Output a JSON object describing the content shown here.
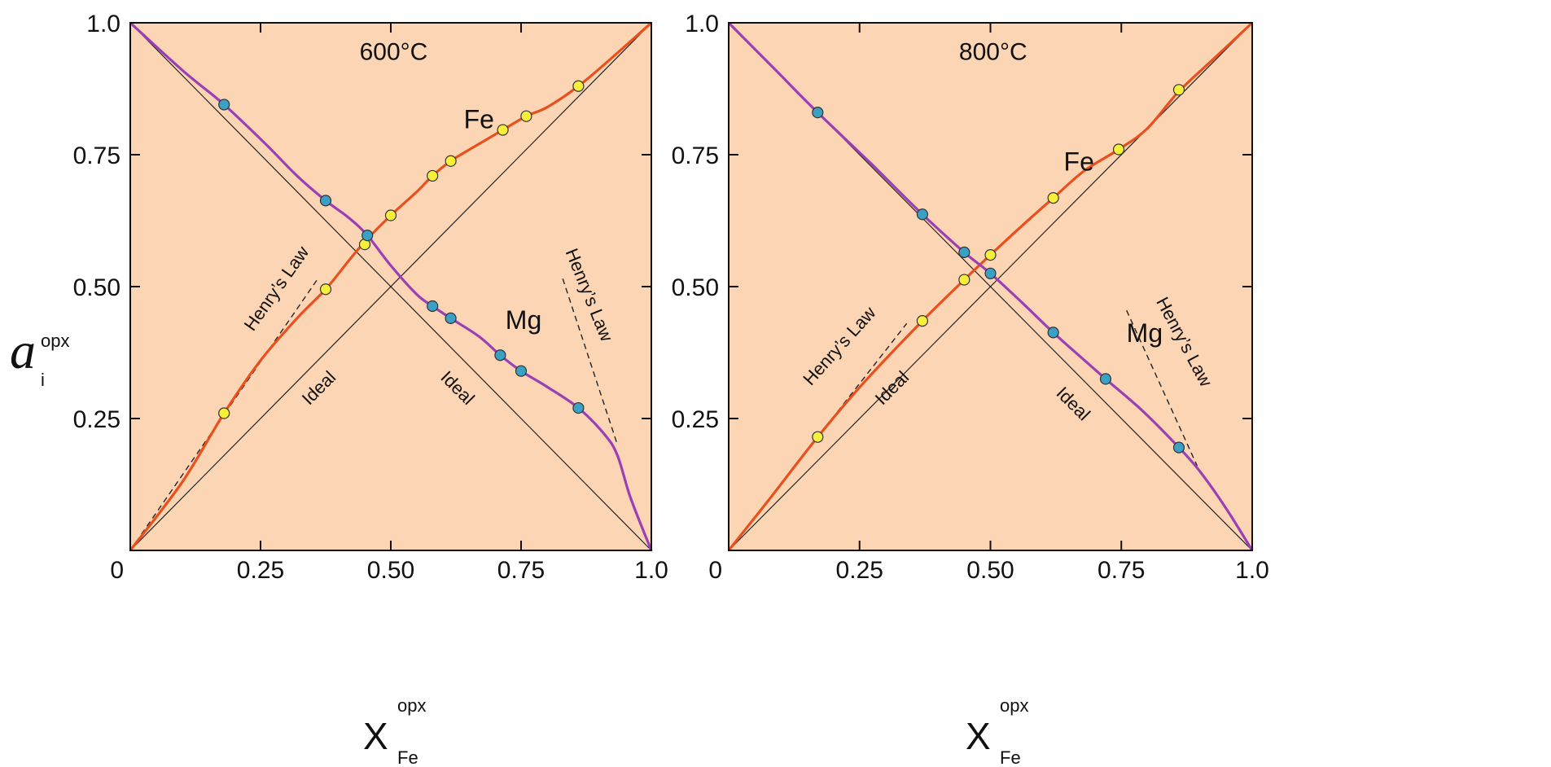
{
  "figure": {
    "y_axis_label": {
      "symbol": "a",
      "subscript": "i",
      "superscript": "opx"
    },
    "x_axis_label": {
      "symbol": "X",
      "subscript": "Fe",
      "superscript": "opx"
    }
  },
  "chart_data": [
    {
      "type": "line",
      "temperature_label": "600°C",
      "background": "#fcd5b4",
      "xlim": [
        0,
        1
      ],
      "ylim": [
        0,
        1
      ],
      "x_ticks": [
        "0",
        "0.25",
        "0.50",
        "0.75",
        "1.0"
      ],
      "y_ticks": [
        "0.25",
        "0.50",
        "0.75",
        "1.0"
      ],
      "annotations": {
        "fe": "Fe",
        "mg": "Mg",
        "ideal_fe": "Ideal",
        "ideal_mg": "Ideal",
        "henry_fe": "Henry’s Law",
        "henry_mg": "Henry’s Law"
      },
      "series": [
        {
          "name": "Fe",
          "color": "#e8501e",
          "marker_color": "#f7ef3a",
          "curve": [
            [
              0,
              0
            ],
            [
              0.1,
              0.13
            ],
            [
              0.18,
              0.26
            ],
            [
              0.25,
              0.36
            ],
            [
              0.32,
              0.44
            ],
            [
              0.375,
              0.495
            ],
            [
              0.42,
              0.55
            ],
            [
              0.45,
              0.585
            ],
            [
              0.5,
              0.635
            ],
            [
              0.55,
              0.68
            ],
            [
              0.58,
              0.71
            ],
            [
              0.615,
              0.738
            ],
            [
              0.66,
              0.765
            ],
            [
              0.715,
              0.797
            ],
            [
              0.76,
              0.823
            ],
            [
              0.8,
              0.84
            ],
            [
              0.86,
              0.88
            ],
            [
              0.92,
              0.93
            ],
            [
              1,
              1
            ]
          ],
          "points": [
            [
              0.18,
              0.26
            ],
            [
              0.375,
              0.495
            ],
            [
              0.45,
              0.58
            ],
            [
              0.5,
              0.635
            ],
            [
              0.58,
              0.71
            ],
            [
              0.615,
              0.738
            ],
            [
              0.715,
              0.797
            ],
            [
              0.76,
              0.823
            ],
            [
              0.86,
              0.88
            ]
          ]
        },
        {
          "name": "Mg",
          "color": "#9b3fb5",
          "marker_color": "#3aa0c4",
          "curve": [
            [
              0,
              1
            ],
            [
              0.1,
              0.91
            ],
            [
              0.18,
              0.845
            ],
            [
              0.26,
              0.77
            ],
            [
              0.32,
              0.71
            ],
            [
              0.375,
              0.663
            ],
            [
              0.42,
              0.63
            ],
            [
              0.455,
              0.597
            ],
            [
              0.5,
              0.54
            ],
            [
              0.55,
              0.485
            ],
            [
              0.58,
              0.463
            ],
            [
              0.615,
              0.44
            ],
            [
              0.67,
              0.405
            ],
            [
              0.71,
              0.37
            ],
            [
              0.75,
              0.34
            ],
            [
              0.8,
              0.31
            ],
            [
              0.86,
              0.27
            ],
            [
              0.91,
              0.22
            ],
            [
              0.935,
              0.18
            ],
            [
              0.96,
              0.1
            ],
            [
              1,
              0
            ]
          ],
          "points": [
            [
              0.18,
              0.845
            ],
            [
              0.375,
              0.663
            ],
            [
              0.455,
              0.597
            ],
            [
              0.58,
              0.463
            ],
            [
              0.615,
              0.44
            ],
            [
              0.71,
              0.37
            ],
            [
              0.75,
              0.34
            ],
            [
              0.86,
              0.27
            ]
          ]
        }
      ],
      "ideal_lines": [
        [
          [
            0,
            0
          ],
          [
            1,
            1
          ]
        ],
        [
          [
            0,
            1
          ],
          [
            1,
            0
          ]
        ]
      ],
      "henry_lines": [
        [
          [
            0,
            0
          ],
          [
            0.36,
            0.515
          ]
        ],
        [
          [
            0.83,
            0.515
          ],
          [
            0.935,
            0.2
          ]
        ]
      ]
    },
    {
      "type": "line",
      "temperature_label": "800°C",
      "background": "#fcd5b4",
      "xlim": [
        0,
        1
      ],
      "ylim": [
        0,
        1
      ],
      "x_ticks": [
        "0",
        "0.25",
        "0.50",
        "0.75",
        "1.0"
      ],
      "y_ticks": [
        "0.25",
        "0.50",
        "0.75",
        "1.0"
      ],
      "annotations": {
        "fe": "Fe",
        "mg": "Mg",
        "ideal_fe": "Ideal",
        "ideal_mg": "Ideal",
        "henry_fe": "Henry’s Law",
        "henry_mg": "Henry’s Law"
      },
      "series": [
        {
          "name": "Fe",
          "color": "#e8501e",
          "marker_color": "#f7ef3a",
          "curve": [
            [
              0,
              0
            ],
            [
              0.08,
              0.1
            ],
            [
              0.17,
              0.215
            ],
            [
              0.26,
              0.32
            ],
            [
              0.37,
              0.435
            ],
            [
              0.45,
              0.513
            ],
            [
              0.5,
              0.56
            ],
            [
              0.56,
              0.615
            ],
            [
              0.62,
              0.668
            ],
            [
              0.68,
              0.72
            ],
            [
              0.745,
              0.76
            ],
            [
              0.8,
              0.8
            ],
            [
              0.86,
              0.87
            ],
            [
              0.93,
              0.935
            ],
            [
              1,
              1
            ]
          ],
          "points": [
            [
              0.17,
              0.215
            ],
            [
              0.37,
              0.435
            ],
            [
              0.45,
              0.513
            ],
            [
              0.5,
              0.56
            ],
            [
              0.62,
              0.668
            ],
            [
              0.745,
              0.76
            ],
            [
              0.86,
              0.873
            ]
          ]
        },
        {
          "name": "Mg",
          "color": "#9b3fb5",
          "marker_color": "#3aa0c4",
          "curve": [
            [
              0,
              1
            ],
            [
              0.09,
              0.91
            ],
            [
              0.17,
              0.83
            ],
            [
              0.27,
              0.735
            ],
            [
              0.37,
              0.637
            ],
            [
              0.45,
              0.565
            ],
            [
              0.5,
              0.525
            ],
            [
              0.56,
              0.47
            ],
            [
              0.62,
              0.413
            ],
            [
              0.68,
              0.36
            ],
            [
              0.72,
              0.325
            ],
            [
              0.79,
              0.265
            ],
            [
              0.86,
              0.195
            ],
            [
              0.9,
              0.15
            ],
            [
              0.95,
              0.08
            ],
            [
              1,
              0
            ]
          ],
          "points": [
            [
              0.17,
              0.83
            ],
            [
              0.37,
              0.637
            ],
            [
              0.45,
              0.565
            ],
            [
              0.5,
              0.525
            ],
            [
              0.62,
              0.413
            ],
            [
              0.72,
              0.325
            ],
            [
              0.86,
              0.195
            ]
          ]
        }
      ],
      "ideal_lines": [
        [
          [
            0,
            0
          ],
          [
            1,
            1
          ]
        ],
        [
          [
            0,
            1
          ],
          [
            1,
            0
          ]
        ]
      ],
      "henry_lines": [
        [
          [
            0,
            0
          ],
          [
            0.34,
            0.43
          ]
        ],
        [
          [
            0.76,
            0.455
          ],
          [
            0.895,
            0.16
          ]
        ]
      ]
    }
  ]
}
